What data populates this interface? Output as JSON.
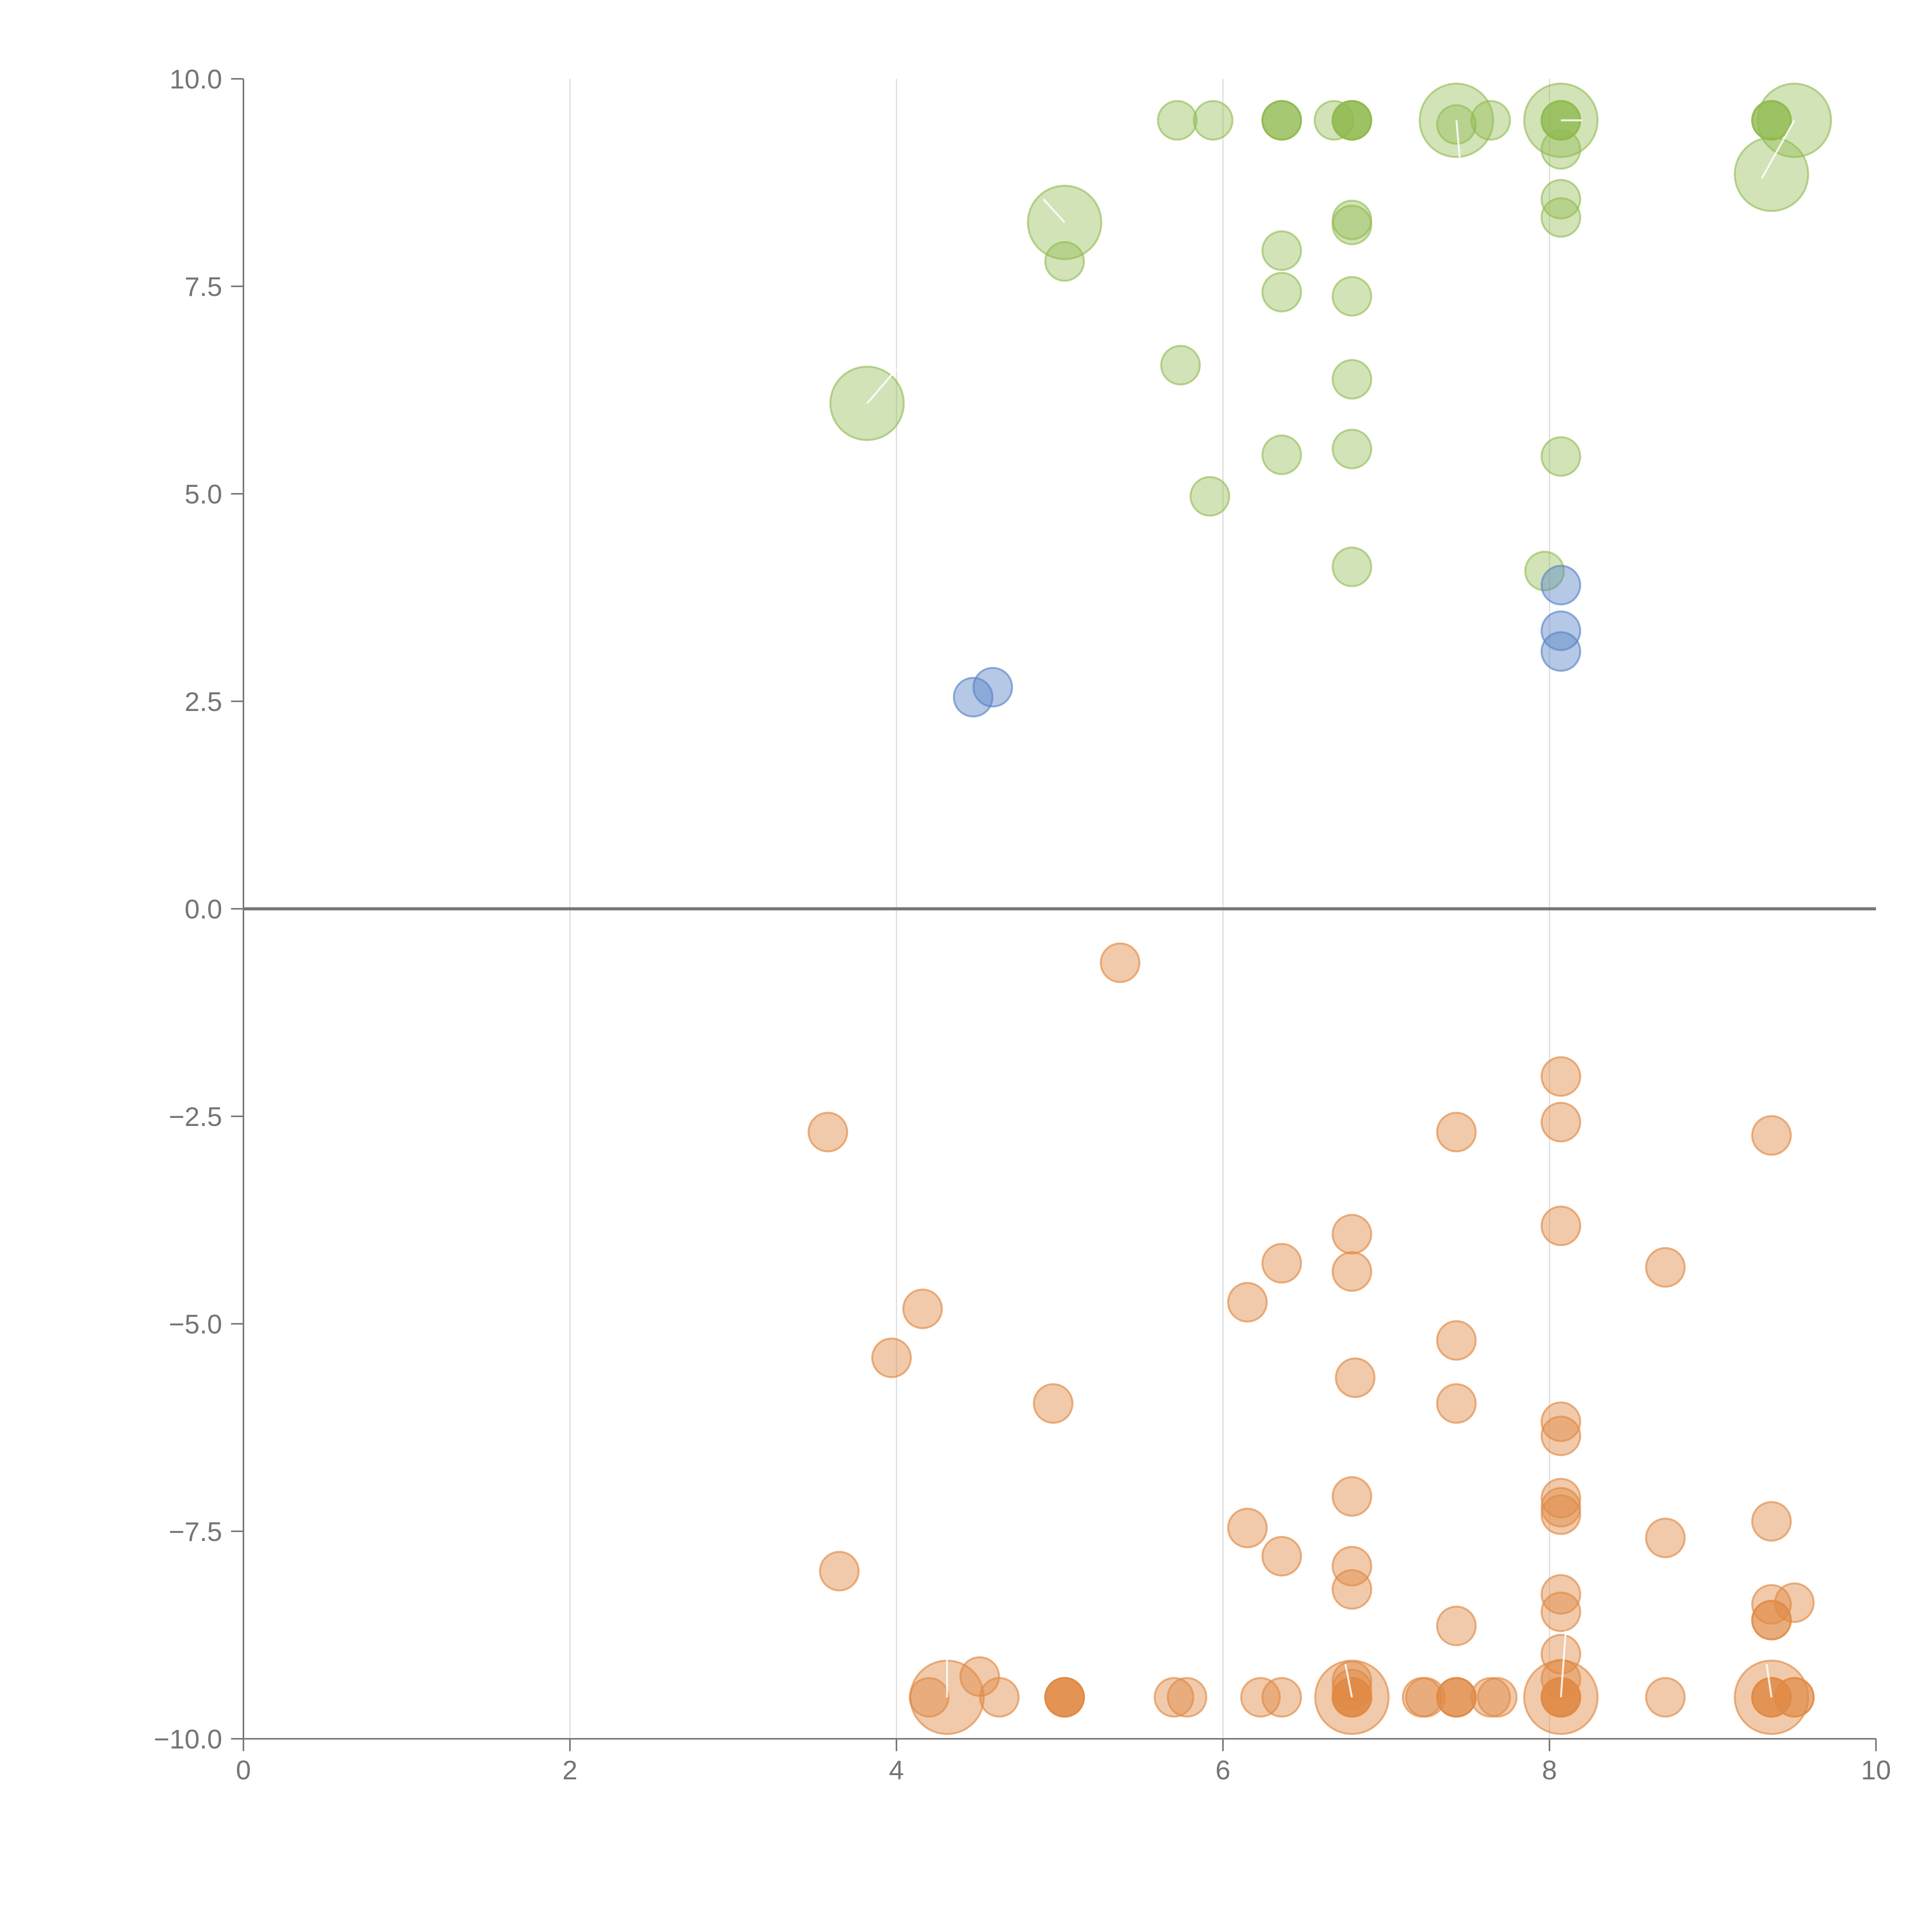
{
  "chart_data": {
    "type": "scatter",
    "title": "",
    "xlabel": "",
    "ylabel": "",
    "xlim": [
      0,
      10
    ],
    "ylim": [
      -10,
      10
    ],
    "x_ticks": [
      0,
      2,
      4,
      6,
      8,
      10
    ],
    "x_tick_labels": [
      "0",
      "2",
      "4",
      "6",
      "8",
      "10"
    ],
    "y_ticks": [
      10,
      7.5,
      5,
      2.5,
      0,
      -2.5,
      -5,
      -7.5,
      -10
    ],
    "y_tick_labels": [
      "10.0",
      "7.5",
      "5.0",
      "2.5",
      "0.0",
      "−2.5",
      "−5.0",
      "−7.5",
      "−10.0"
    ],
    "vertical_grid_at": [
      2,
      4,
      6,
      8
    ],
    "zero_line": true,
    "series": [
      {
        "name": "green",
        "color": "#8fba4e",
        "opacity": 0.4,
        "points": [
          {
            "x": 5.72,
            "y": 9.5,
            "size": 1
          },
          {
            "x": 5.94,
            "y": 9.5,
            "size": 1
          },
          {
            "x": 6.36,
            "y": 9.5,
            "size": 1
          },
          {
            "x": 6.36,
            "y": 9.5,
            "size": 1
          },
          {
            "x": 6.36,
            "y": 9.5,
            "size": 1
          },
          {
            "x": 6.68,
            "y": 9.5,
            "size": 1
          },
          {
            "x": 6.79,
            "y": 9.5,
            "size": 1
          },
          {
            "x": 6.79,
            "y": 9.5,
            "size": 1
          },
          {
            "x": 6.79,
            "y": 9.5,
            "size": 1
          },
          {
            "x": 6.79,
            "y": 9.5,
            "size": 1
          },
          {
            "x": 7.43,
            "y": 9.5,
            "size": 2.5
          },
          {
            "x": 7.43,
            "y": 9.45,
            "size": 1
          },
          {
            "x": 7.64,
            "y": 9.5,
            "size": 1
          },
          {
            "x": 8.07,
            "y": 9.5,
            "size": 2.5
          },
          {
            "x": 8.07,
            "y": 9.5,
            "size": 1
          },
          {
            "x": 8.07,
            "y": 9.5,
            "size": 1
          },
          {
            "x": 8.07,
            "y": 9.5,
            "size": 1
          },
          {
            "x": 8.07,
            "y": 9.15,
            "size": 1
          },
          {
            "x": 9.36,
            "y": 9.5,
            "size": 1
          },
          {
            "x": 9.36,
            "y": 9.5,
            "size": 1
          },
          {
            "x": 9.36,
            "y": 9.5,
            "size": 1
          },
          {
            "x": 9.5,
            "y": 9.5,
            "size": 2.5
          },
          {
            "x": 9.36,
            "y": 8.85,
            "size": 2.5
          },
          {
            "x": 8.07,
            "y": 8.55,
            "size": 1
          },
          {
            "x": 8.07,
            "y": 8.33,
            "size": 1
          },
          {
            "x": 5.03,
            "y": 8.27,
            "size": 2.5
          },
          {
            "x": 6.79,
            "y": 8.3,
            "size": 1
          },
          {
            "x": 6.79,
            "y": 8.24,
            "size": 1
          },
          {
            "x": 5.03,
            "y": 7.8,
            "size": 1
          },
          {
            "x": 6.36,
            "y": 7.93,
            "size": 1
          },
          {
            "x": 6.36,
            "y": 7.43,
            "size": 1
          },
          {
            "x": 6.79,
            "y": 7.38,
            "size": 1
          },
          {
            "x": 5.74,
            "y": 6.55,
            "size": 1
          },
          {
            "x": 6.79,
            "y": 6.38,
            "size": 1
          },
          {
            "x": 3.82,
            "y": 6.09,
            "size": 2.5
          },
          {
            "x": 6.36,
            "y": 5.47,
            "size": 1
          },
          {
            "x": 6.79,
            "y": 5.54,
            "size": 1
          },
          {
            "x": 8.07,
            "y": 5.45,
            "size": 1
          },
          {
            "x": 5.92,
            "y": 4.97,
            "size": 1
          },
          {
            "x": 6.79,
            "y": 4.12,
            "size": 1
          },
          {
            "x": 7.97,
            "y": 4.07,
            "size": 1
          }
        ]
      },
      {
        "name": "blue",
        "color": "#5b86c8",
        "opacity": 0.45,
        "points": [
          {
            "x": 8.07,
            "y": 3.9,
            "size": 1
          },
          {
            "x": 8.07,
            "y": 3.35,
            "size": 1
          },
          {
            "x": 8.07,
            "y": 3.1,
            "size": 1
          },
          {
            "x": 4.59,
            "y": 2.67,
            "size": 1
          },
          {
            "x": 4.47,
            "y": 2.55,
            "size": 1
          }
        ]
      },
      {
        "name": "orange",
        "color": "#e08a45",
        "opacity": 0.45,
        "points": [
          {
            "x": 5.37,
            "y": -0.65,
            "size": 1
          },
          {
            "x": 8.07,
            "y": -2.02,
            "size": 1
          },
          {
            "x": 8.07,
            "y": -2.57,
            "size": 1
          },
          {
            "x": 3.58,
            "y": -2.69,
            "size": 1
          },
          {
            "x": 7.43,
            "y": -2.69,
            "size": 1
          },
          {
            "x": 9.36,
            "y": -2.73,
            "size": 1
          },
          {
            "x": 8.07,
            "y": -3.82,
            "size": 1
          },
          {
            "x": 6.79,
            "y": -3.92,
            "size": 1
          },
          {
            "x": 6.36,
            "y": -4.27,
            "size": 1
          },
          {
            "x": 6.79,
            "y": -4.37,
            "size": 1
          },
          {
            "x": 8.71,
            "y": -4.32,
            "size": 1
          },
          {
            "x": 6.15,
            "y": -4.74,
            "size": 1
          },
          {
            "x": 4.16,
            "y": -4.82,
            "size": 1
          },
          {
            "x": 7.43,
            "y": -5.2,
            "size": 1
          },
          {
            "x": 3.97,
            "y": -5.41,
            "size": 1
          },
          {
            "x": 6.81,
            "y": -5.65,
            "size": 1
          },
          {
            "x": 4.96,
            "y": -5.96,
            "size": 1
          },
          {
            "x": 7.43,
            "y": -5.96,
            "size": 1
          },
          {
            "x": 8.07,
            "y": -6.18,
            "size": 1
          },
          {
            "x": 8.07,
            "y": -6.35,
            "size": 1
          },
          {
            "x": 6.79,
            "y": -7.08,
            "size": 1
          },
          {
            "x": 8.07,
            "y": -7.1,
            "size": 1
          },
          {
            "x": 8.07,
            "y": -7.21,
            "size": 1
          },
          {
            "x": 8.07,
            "y": -7.3,
            "size": 1
          },
          {
            "x": 9.36,
            "y": -7.38,
            "size": 1
          },
          {
            "x": 6.15,
            "y": -7.46,
            "size": 1
          },
          {
            "x": 8.71,
            "y": -7.58,
            "size": 1
          },
          {
            "x": 6.36,
            "y": -7.8,
            "size": 1
          },
          {
            "x": 6.79,
            "y": -7.92,
            "size": 1
          },
          {
            "x": 3.65,
            "y": -7.98,
            "size": 1
          },
          {
            "x": 6.79,
            "y": -8.2,
            "size": 1
          },
          {
            "x": 8.07,
            "y": -8.26,
            "size": 1
          },
          {
            "x": 9.36,
            "y": -8.38,
            "size": 1
          },
          {
            "x": 9.5,
            "y": -8.36,
            "size": 1
          },
          {
            "x": 8.07,
            "y": -8.47,
            "size": 1
          },
          {
            "x": 9.36,
            "y": -8.57,
            "size": 1
          },
          {
            "x": 9.36,
            "y": -8.57,
            "size": 1
          },
          {
            "x": 7.43,
            "y": -8.64,
            "size": 1
          },
          {
            "x": 8.07,
            "y": -8.98,
            "size": 1
          },
          {
            "x": 4.51,
            "y": -9.25,
            "size": 1
          },
          {
            "x": 8.07,
            "y": -9.28,
            "size": 1
          },
          {
            "x": 6.79,
            "y": -9.3,
            "size": 1
          },
          {
            "x": 6.79,
            "y": -9.4,
            "size": 1
          },
          {
            "x": 4.31,
            "y": -9.5,
            "size": 2.5
          },
          {
            "x": 4.2,
            "y": -9.5,
            "size": 1
          },
          {
            "x": 4.63,
            "y": -9.5,
            "size": 1
          },
          {
            "x": 5.03,
            "y": -9.5,
            "size": 1
          },
          {
            "x": 5.03,
            "y": -9.5,
            "size": 1
          },
          {
            "x": 5.03,
            "y": -9.5,
            "size": 1
          },
          {
            "x": 5.03,
            "y": -9.5,
            "size": 1
          },
          {
            "x": 5.7,
            "y": -9.5,
            "size": 1
          },
          {
            "x": 5.78,
            "y": -9.5,
            "size": 1
          },
          {
            "x": 6.23,
            "y": -9.5,
            "size": 1
          },
          {
            "x": 6.36,
            "y": -9.5,
            "size": 1
          },
          {
            "x": 6.79,
            "y": -9.5,
            "size": 2.5
          },
          {
            "x": 6.79,
            "y": -9.5,
            "size": 1
          },
          {
            "x": 6.79,
            "y": -9.5,
            "size": 1
          },
          {
            "x": 6.79,
            "y": -9.5,
            "size": 1
          },
          {
            "x": 6.79,
            "y": -9.5,
            "size": 1
          },
          {
            "x": 7.22,
            "y": -9.5,
            "size": 1
          },
          {
            "x": 7.24,
            "y": -9.5,
            "size": 1
          },
          {
            "x": 7.43,
            "y": -9.5,
            "size": 1
          },
          {
            "x": 7.43,
            "y": -9.5,
            "size": 1
          },
          {
            "x": 7.43,
            "y": -9.5,
            "size": 1
          },
          {
            "x": 7.64,
            "y": -9.5,
            "size": 1
          },
          {
            "x": 7.68,
            "y": -9.5,
            "size": 1
          },
          {
            "x": 8.07,
            "y": -9.5,
            "size": 2.5
          },
          {
            "x": 8.07,
            "y": -9.5,
            "size": 1
          },
          {
            "x": 8.07,
            "y": -9.5,
            "size": 1
          },
          {
            "x": 8.07,
            "y": -9.5,
            "size": 1
          },
          {
            "x": 8.07,
            "y": -9.5,
            "size": 1
          },
          {
            "x": 8.71,
            "y": -9.5,
            "size": 1
          },
          {
            "x": 9.36,
            "y": -9.5,
            "size": 2.5
          },
          {
            "x": 9.36,
            "y": -9.5,
            "size": 1
          },
          {
            "x": 9.36,
            "y": -9.5,
            "size": 1
          },
          {
            "x": 9.36,
            "y": -9.5,
            "size": 1
          },
          {
            "x": 9.5,
            "y": -9.5,
            "size": 1
          },
          {
            "x": 9.5,
            "y": -9.5,
            "size": 1
          }
        ]
      }
    ],
    "leader_lines": [
      {
        "x1": 3.82,
        "y1": 6.09,
        "x2": 4.0,
        "y2": 6.5
      },
      {
        "x1": 5.03,
        "y1": 8.27,
        "x2": 4.9,
        "y2": 8.55
      },
      {
        "x1": 7.43,
        "y1": 9.5,
        "x2": 7.45,
        "y2": 9.05
      },
      {
        "x1": 8.07,
        "y1": 9.5,
        "x2": 8.2,
        "y2": 9.5
      },
      {
        "x1": 9.5,
        "y1": 9.5,
        "x2": 9.3,
        "y2": 8.8
      },
      {
        "x1": 4.31,
        "y1": -9.5,
        "x2": 4.31,
        "y2": -9.0
      },
      {
        "x1": 6.79,
        "y1": -9.5,
        "x2": 6.75,
        "y2": -9.1
      },
      {
        "x1": 8.07,
        "y1": -9.5,
        "x2": 8.1,
        "y2": -8.7
      },
      {
        "x1": 9.36,
        "y1": -9.5,
        "x2": 9.33,
        "y2": -9.1
      }
    ]
  }
}
